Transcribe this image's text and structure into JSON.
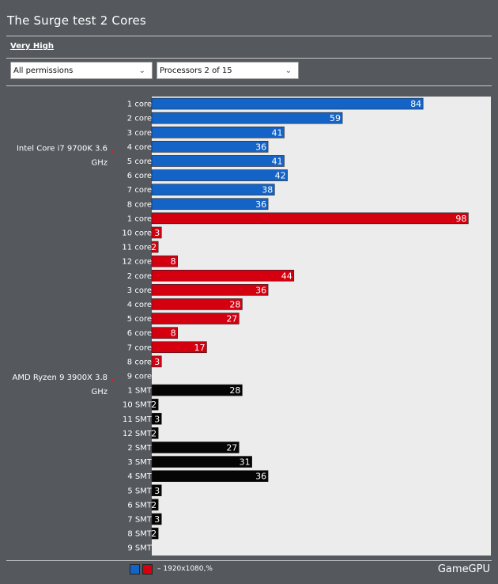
{
  "header": {
    "title": "The Surge test 2 Cores",
    "preset": "Very High"
  },
  "filters": {
    "permissions": "All permissions",
    "processors": "Processors 2 of 15"
  },
  "footer": {
    "legend_text": "– 1920x1080,%",
    "brand": "GameGPU"
  },
  "chart_data": {
    "type": "bar",
    "orientation": "horizontal",
    "title": "The Surge test 2 Cores",
    "xlim": [
      0,
      105
    ],
    "grid": false,
    "legend": "bottom",
    "groups": [
      {
        "name": "Intel Core i7 9700K 3.6 GHz",
        "rows": [
          {
            "label": "1 core",
            "value": 84,
            "color": "#1464c8"
          },
          {
            "label": "2 core",
            "value": 59,
            "color": "#1464c8"
          },
          {
            "label": "3 core",
            "value": 41,
            "color": "#1464c8"
          },
          {
            "label": "4 core",
            "value": 36,
            "color": "#1464c8"
          },
          {
            "label": "5 core",
            "value": 41,
            "color": "#1464c8"
          },
          {
            "label": "6 core",
            "value": 42,
            "color": "#1464c8"
          },
          {
            "label": "7 core",
            "value": 38,
            "color": "#1464c8"
          },
          {
            "label": "8 core",
            "value": 36,
            "color": "#1464c8"
          }
        ]
      },
      {
        "name": "AMD Ryzen 9 3900X 3.8 GHz",
        "rows": [
          {
            "label": "1 core",
            "value": 98,
            "color": "#d40010"
          },
          {
            "label": "10 core",
            "value": 3,
            "color": "#d40010"
          },
          {
            "label": "11 core",
            "value": 2,
            "color": "#d40010"
          },
          {
            "label": "12 core",
            "value": 8,
            "color": "#d40010"
          },
          {
            "label": "2 core",
            "value": 44,
            "color": "#d40010"
          },
          {
            "label": "3 core",
            "value": 36,
            "color": "#d40010"
          },
          {
            "label": "4 core",
            "value": 28,
            "color": "#d40010"
          },
          {
            "label": "5 core",
            "value": 27,
            "color": "#d40010"
          },
          {
            "label": "6 core",
            "value": 8,
            "color": "#d40010"
          },
          {
            "label": "7 core",
            "value": 17,
            "color": "#d40010"
          },
          {
            "label": "8 core",
            "value": 3,
            "color": "#d40010"
          },
          {
            "label": "9 core",
            "value": 0,
            "color": "#d40010"
          },
          {
            "label": "1 SMT",
            "value": 28,
            "color": "#050505"
          },
          {
            "label": "10 SMT",
            "value": 2,
            "color": "#050505"
          },
          {
            "label": "11 SMT",
            "value": 3,
            "color": "#050505"
          },
          {
            "label": "12 SMT",
            "value": 2,
            "color": "#050505"
          },
          {
            "label": "2 SMT",
            "value": 27,
            "color": "#050505"
          },
          {
            "label": "3 SMT",
            "value": 31,
            "color": "#050505"
          },
          {
            "label": "4 SMT",
            "value": 36,
            "color": "#050505"
          },
          {
            "label": "5 SMT",
            "value": 3,
            "color": "#050505"
          },
          {
            "label": "6 SMT",
            "value": 2,
            "color": "#050505"
          },
          {
            "label": "7 SMT",
            "value": 3,
            "color": "#050505"
          },
          {
            "label": "8 SMT",
            "value": 2,
            "color": "#050505"
          },
          {
            "label": "9 SMT",
            "value": 0,
            "color": "#050505"
          }
        ]
      }
    ],
    "legend_colors": [
      "#1464c8",
      "#d40010"
    ]
  }
}
